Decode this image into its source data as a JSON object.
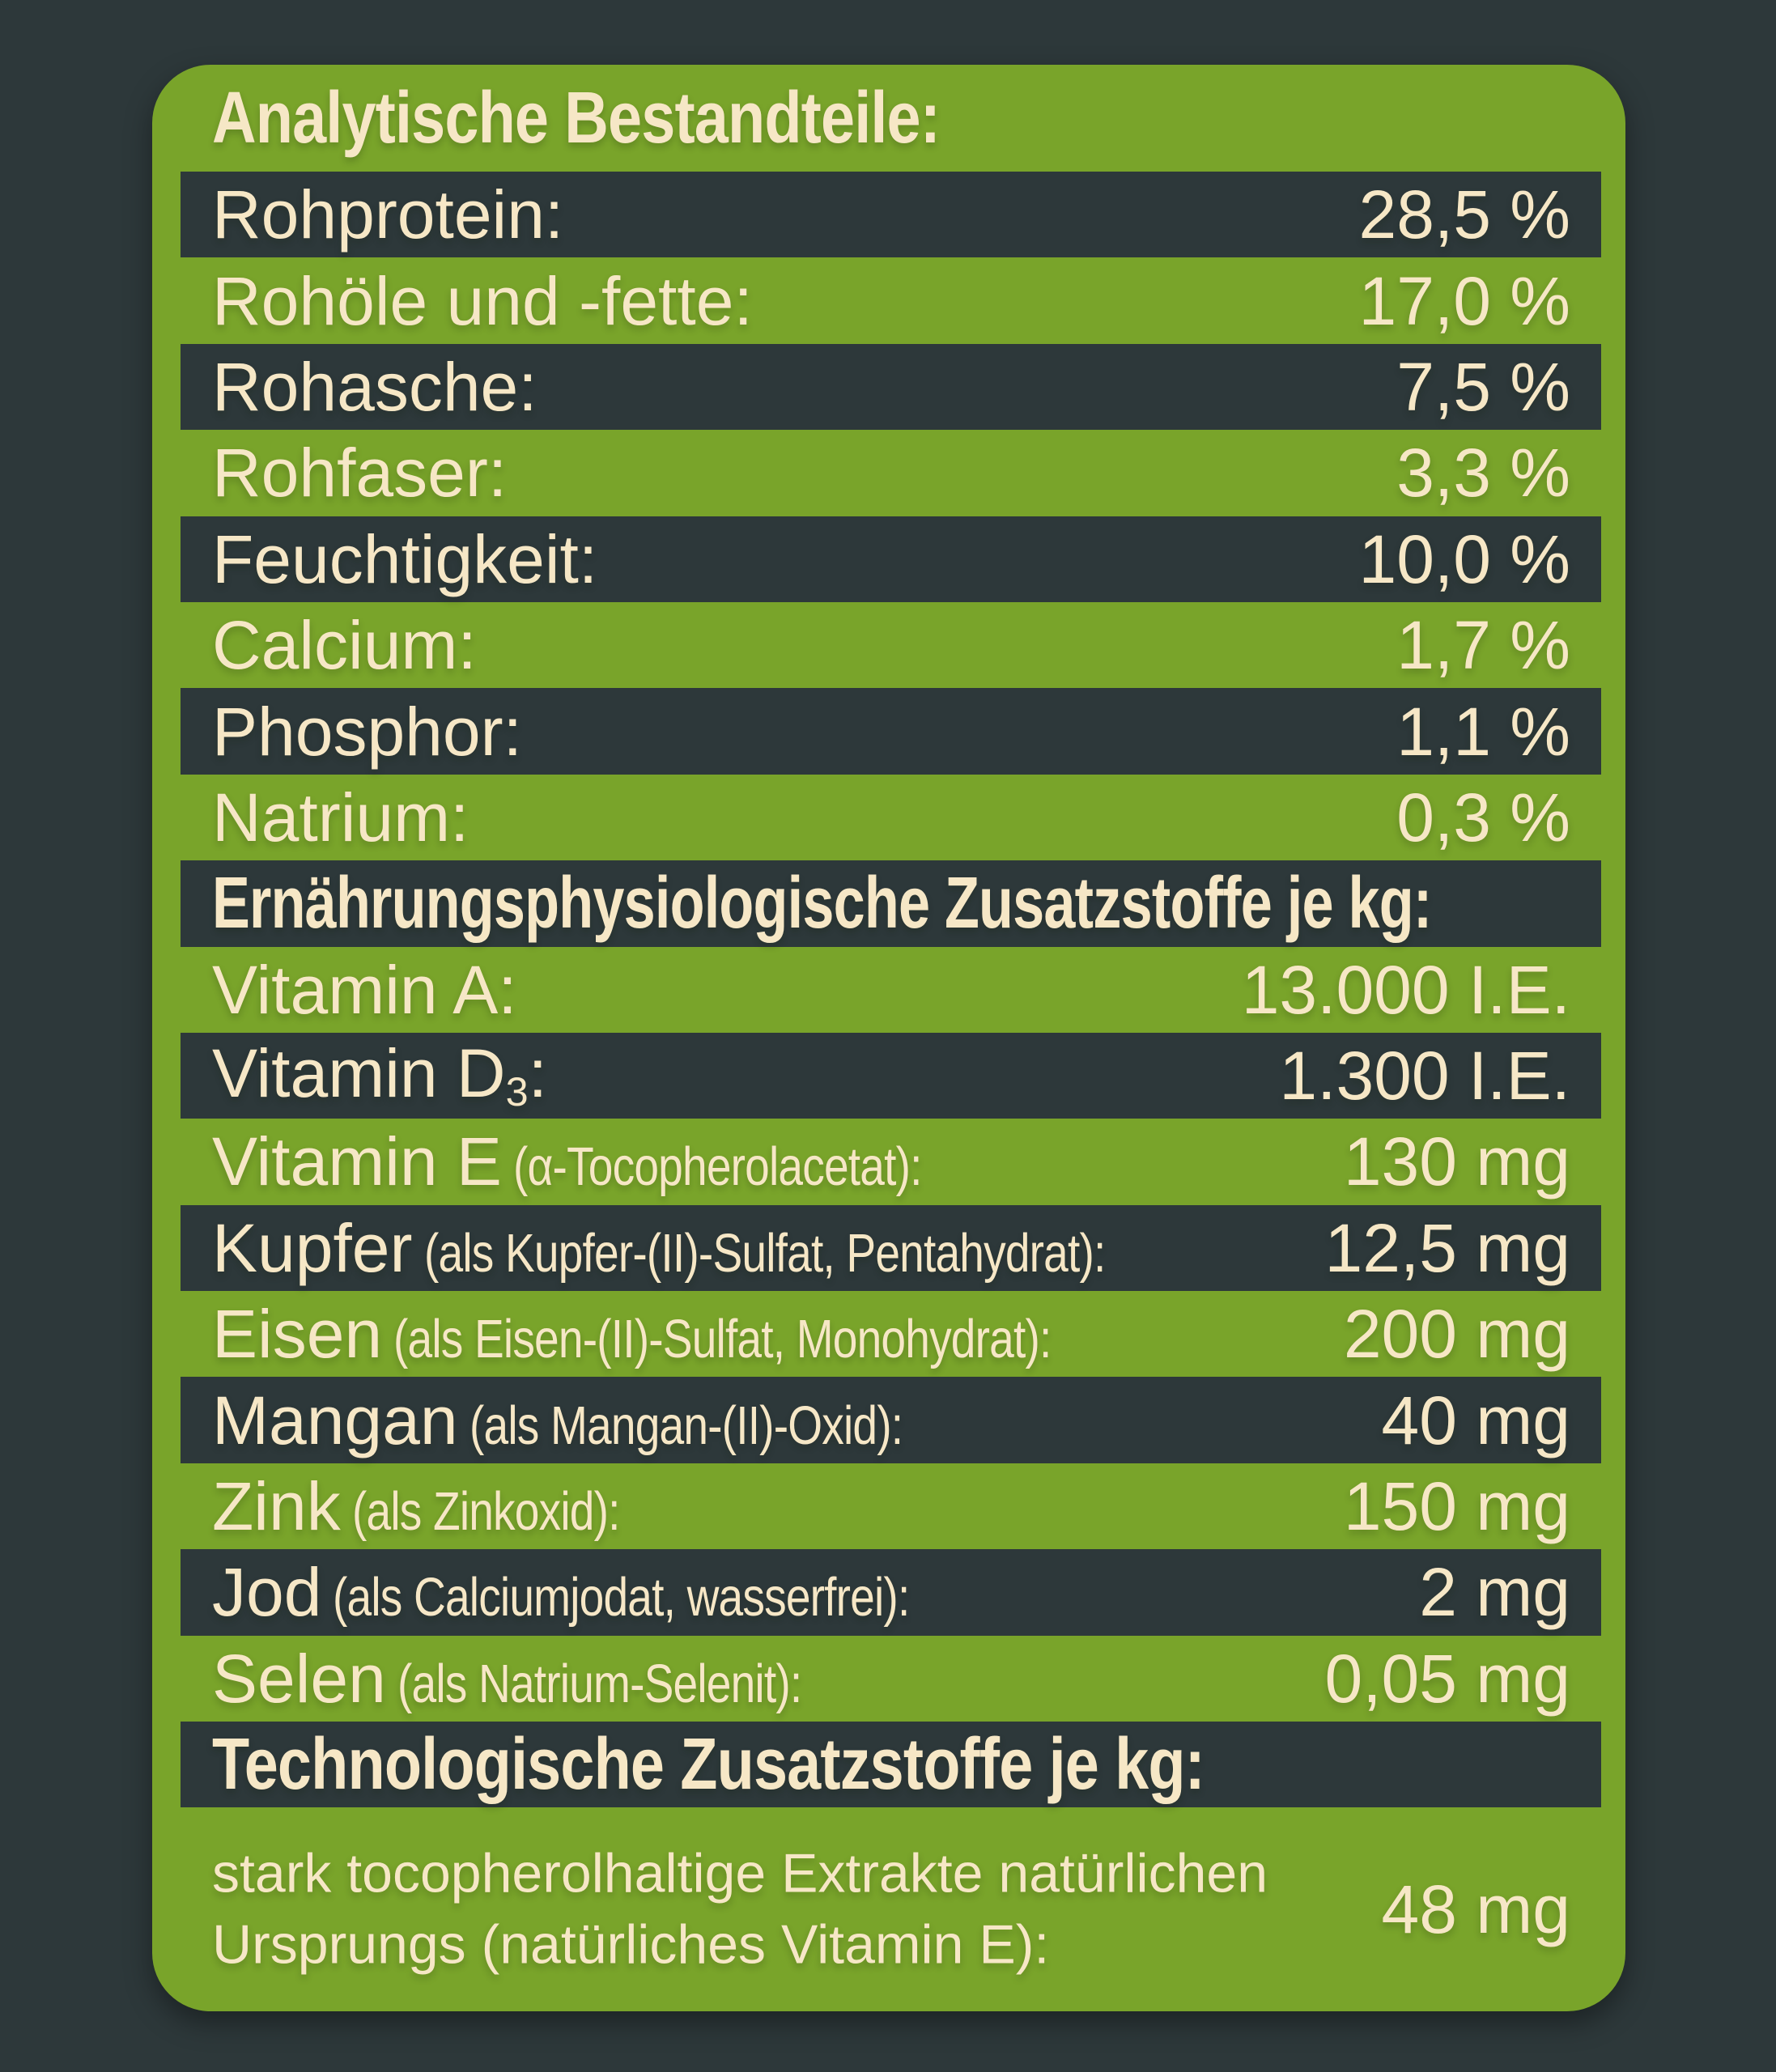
{
  "colors": {
    "background": "#2d383a",
    "panel_green": "#79a42a",
    "stripe_dark": "#2d383a",
    "text_cream": "#f6e7c6"
  },
  "analytical": {
    "title": "Analytische Bestandteile:",
    "rows": [
      {
        "label": "Rohprotein:",
        "value": "28,5 %"
      },
      {
        "label": "Rohöle und -fette:",
        "value": "17,0 %"
      },
      {
        "label": "Rohasche:",
        "value": "7,5 %"
      },
      {
        "label": "Rohfaser:",
        "value": "3,3 %"
      },
      {
        "label": "Feuchtigkeit:",
        "value": "10,0 %"
      },
      {
        "label": "Calcium:",
        "value": "1,7 %"
      },
      {
        "label": "Phosphor:",
        "value": "1,1 %"
      },
      {
        "label": "Natrium:",
        "value": "0,3 %"
      }
    ]
  },
  "nutritional": {
    "header": "Ernährungsphysiologische Zusatzstoffe je kg:",
    "rows": [
      {
        "label": "Vitamin A:",
        "value": "13.000 I.E."
      },
      {
        "label": "Vitamin D",
        "sub": "3",
        "label_post": ":",
        "value": "1.300 I.E."
      },
      {
        "label": "Vitamin E",
        "detail": "(α-Tocopherolacetat):",
        "value": "130 mg"
      },
      {
        "label": "Kupfer",
        "detail": "(als Kupfer-(II)-Sulfat, Pentahydrat):",
        "value": "12,5 mg"
      },
      {
        "label": "Eisen",
        "detail": "(als Eisen-(II)-Sulfat, Monohydrat):",
        "value": "200 mg"
      },
      {
        "label": "Mangan",
        "detail": "(als Mangan-(II)-Oxid):",
        "value": "40 mg"
      },
      {
        "label": "Zink",
        "detail": "(als Zinkoxid):",
        "value": "150 mg"
      },
      {
        "label": "Jod",
        "detail": "(als Calciumjodat, wasserfrei):",
        "value": "2 mg"
      },
      {
        "label": "Selen",
        "detail": "(als Natrium-Selenit):",
        "value": "0,05 mg"
      }
    ]
  },
  "technological": {
    "header": "Technologische Zusatzstoffe je kg:",
    "rows": [
      {
        "label_line1": "stark tocopherolhaltige Extrakte natürlichen",
        "label_line2": "Ursprungs (natürliches Vitamin E):",
        "value": "48 mg"
      }
    ]
  }
}
